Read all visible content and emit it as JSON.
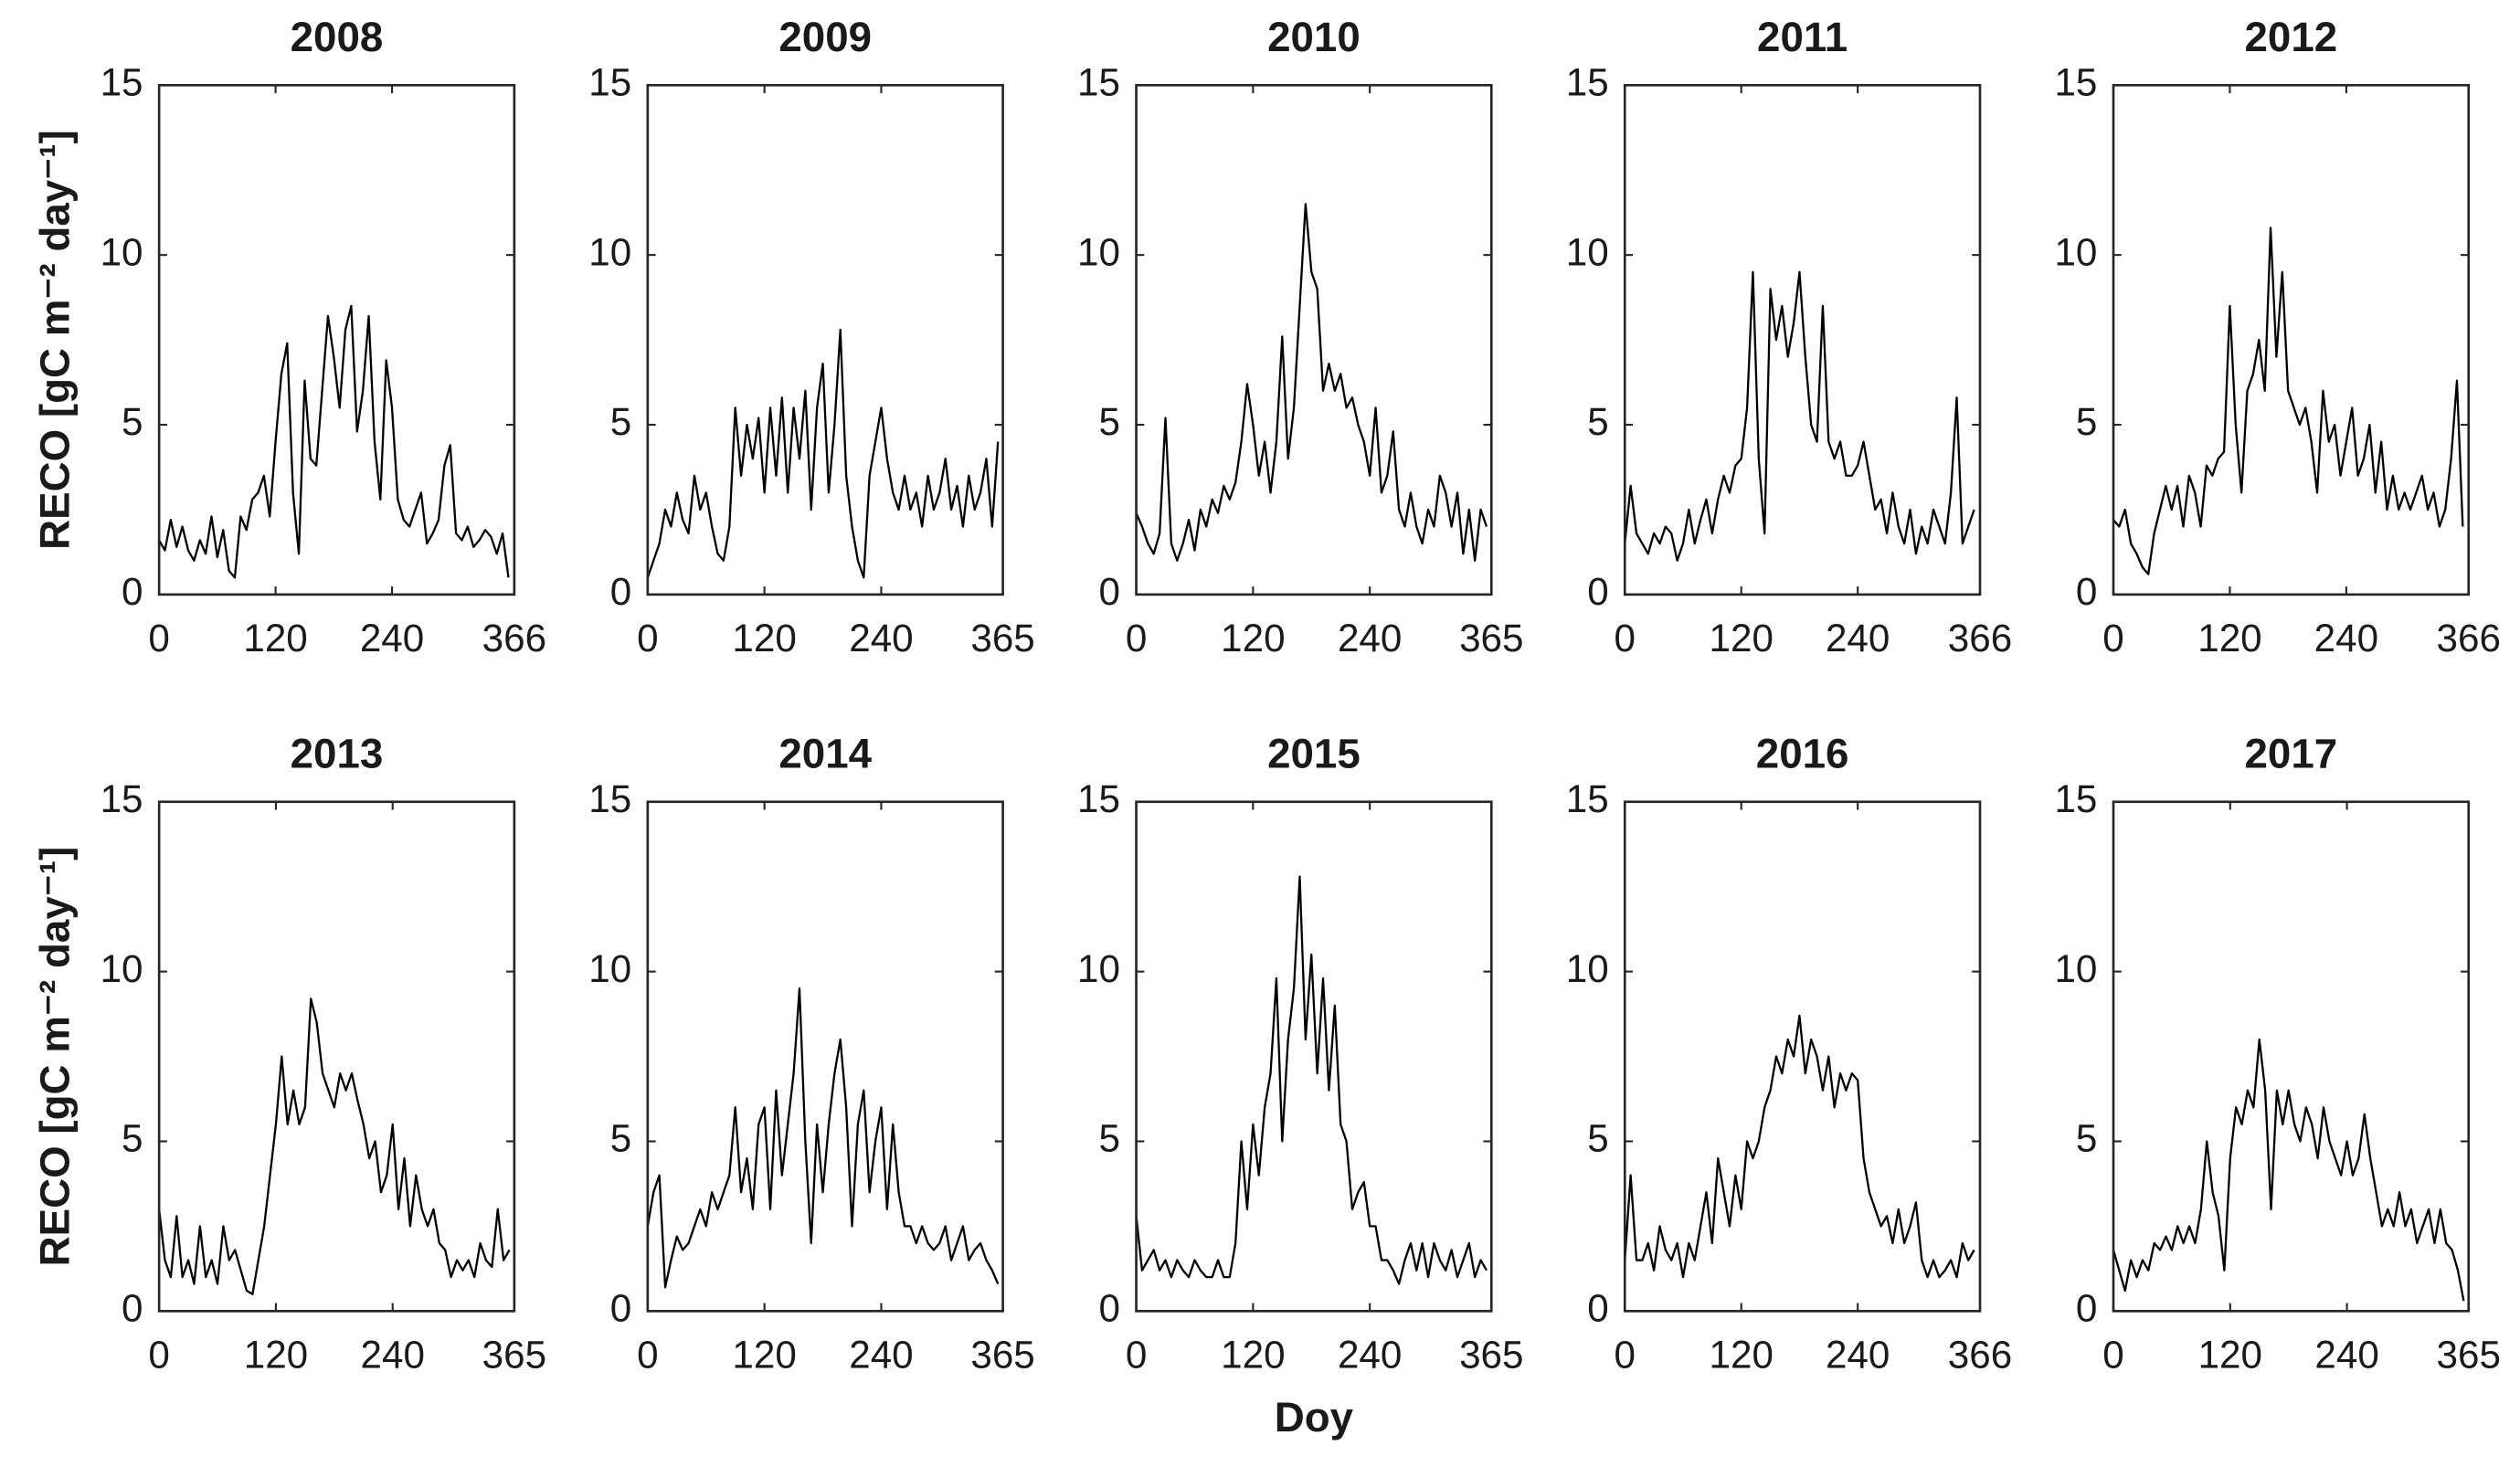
{
  "chart_data": [
    {
      "type": "line",
      "title": "2008",
      "ylabel": "RECO [gC m⁻² day⁻¹]",
      "color": "#000000",
      "xlim": [
        0,
        366
      ],
      "xticks": [
        0,
        120,
        240,
        366
      ],
      "ylim": [
        0,
        15
      ],
      "yticks": [
        0,
        5,
        10,
        15
      ],
      "x": [
        0,
        6,
        12,
        18,
        24,
        30,
        36,
        42,
        48,
        54,
        60,
        66,
        72,
        78,
        84,
        90,
        96,
        102,
        108,
        114,
        120,
        126,
        132,
        138,
        144,
        150,
        156,
        162,
        168,
        174,
        180,
        186,
        192,
        198,
        204,
        210,
        216,
        222,
        228,
        234,
        240,
        246,
        252,
        258,
        264,
        270,
        276,
        282,
        288,
        294,
        300,
        306,
        312,
        318,
        324,
        330,
        336,
        342,
        348,
        354,
        360
      ],
      "values": [
        1.6,
        1.3,
        2.2,
        1.4,
        2.0,
        1.3,
        1.0,
        1.6,
        1.2,
        2.3,
        1.1,
        1.9,
        0.7,
        0.5,
        2.3,
        1.9,
        2.8,
        3.0,
        3.5,
        2.3,
        4.5,
        6.5,
        7.4,
        3.0,
        1.2,
        6.3,
        4.0,
        3.8,
        6.0,
        8.2,
        7.0,
        5.5,
        7.8,
        8.5,
        4.8,
        6.0,
        8.2,
        4.5,
        2.8,
        6.9,
        5.5,
        2.8,
        2.2,
        2.0,
        2.5,
        3.0,
        1.5,
        1.8,
        2.2,
        3.8,
        4.4,
        1.8,
        1.6,
        2.0,
        1.4,
        1.6,
        1.9,
        1.7,
        1.2,
        1.8,
        0.5
      ]
    },
    {
      "type": "line",
      "title": "2009",
      "color": "#000000",
      "xlim": [
        0,
        365
      ],
      "xticks": [
        0,
        120,
        240,
        365
      ],
      "ylim": [
        0,
        15
      ],
      "yticks": [
        0,
        5,
        10,
        15
      ],
      "x": [
        0,
        6,
        12,
        18,
        24,
        30,
        36,
        42,
        48,
        54,
        60,
        66,
        72,
        78,
        84,
        90,
        96,
        102,
        108,
        114,
        120,
        126,
        132,
        138,
        144,
        150,
        156,
        162,
        168,
        174,
        180,
        186,
        192,
        198,
        204,
        210,
        216,
        222,
        228,
        234,
        240,
        246,
        252,
        258,
        264,
        270,
        276,
        282,
        288,
        294,
        300,
        306,
        312,
        318,
        324,
        330,
        336,
        342,
        348,
        354,
        360
      ],
      "values": [
        0.5,
        1.0,
        1.5,
        2.5,
        2.0,
        3.0,
        2.2,
        1.8,
        3.5,
        2.5,
        3.0,
        2.0,
        1.2,
        1.0,
        2.0,
        5.5,
        3.5,
        5.0,
        4.0,
        5.2,
        3.0,
        5.5,
        3.5,
        5.8,
        3.0,
        5.5,
        4.0,
        6.0,
        2.5,
        5.5,
        6.8,
        3.0,
        5.0,
        7.8,
        3.5,
        2.0,
        1.0,
        0.5,
        3.5,
        4.5,
        5.5,
        4.0,
        3.0,
        2.5,
        3.5,
        2.5,
        3.0,
        2.0,
        3.5,
        2.5,
        3.0,
        4.0,
        2.5,
        3.2,
        2.0,
        3.5,
        2.5,
        3.0,
        4.0,
        2.0,
        4.5
      ]
    },
    {
      "type": "line",
      "title": "2010",
      "color": "#000000",
      "xlim": [
        0,
        365
      ],
      "xticks": [
        0,
        120,
        240,
        365
      ],
      "ylim": [
        0,
        15
      ],
      "yticks": [
        0,
        5,
        10,
        15
      ],
      "x": [
        0,
        6,
        12,
        18,
        24,
        30,
        36,
        42,
        48,
        54,
        60,
        66,
        72,
        78,
        84,
        90,
        96,
        102,
        108,
        114,
        120,
        126,
        132,
        138,
        144,
        150,
        156,
        162,
        168,
        174,
        180,
        186,
        192,
        198,
        204,
        210,
        216,
        222,
        228,
        234,
        240,
        246,
        252,
        258,
        264,
        270,
        276,
        282,
        288,
        294,
        300,
        306,
        312,
        318,
        324,
        330,
        336,
        342,
        348,
        354,
        360
      ],
      "values": [
        2.4,
        2.0,
        1.5,
        1.2,
        1.8,
        5.2,
        1.5,
        1.0,
        1.5,
        2.2,
        1.3,
        2.5,
        2.0,
        2.8,
        2.4,
        3.2,
        2.8,
        3.3,
        4.5,
        6.2,
        5.0,
        3.5,
        4.5,
        3.0,
        4.5,
        7.6,
        4.0,
        5.5,
        8.5,
        11.5,
        9.5,
        9.0,
        6.0,
        6.8,
        6.0,
        6.5,
        5.5,
        5.8,
        5.0,
        4.5,
        3.5,
        5.5,
        3.0,
        3.5,
        4.8,
        2.5,
        2.0,
        3.0,
        2.0,
        1.5,
        2.5,
        2.0,
        3.5,
        3.0,
        2.0,
        3.0,
        1.2,
        2.5,
        1.0,
        2.5,
        2.0
      ]
    },
    {
      "type": "line",
      "title": "2011",
      "color": "#000000",
      "xlim": [
        0,
        366
      ],
      "xticks": [
        0,
        120,
        240,
        366
      ],
      "ylim": [
        0,
        15
      ],
      "yticks": [
        0,
        5,
        10,
        15
      ],
      "x": [
        0,
        6,
        12,
        18,
        24,
        30,
        36,
        42,
        48,
        54,
        60,
        66,
        72,
        78,
        84,
        90,
        96,
        102,
        108,
        114,
        120,
        126,
        132,
        138,
        144,
        150,
        156,
        162,
        168,
        174,
        180,
        186,
        192,
        198,
        204,
        210,
        216,
        222,
        228,
        234,
        240,
        246,
        252,
        258,
        264,
        270,
        276,
        282,
        288,
        294,
        300,
        306,
        312,
        318,
        324,
        330,
        336,
        342,
        348,
        354,
        360
      ],
      "values": [
        1.5,
        3.2,
        1.8,
        1.5,
        1.2,
        1.8,
        1.5,
        2.0,
        1.8,
        1.0,
        1.5,
        2.5,
        1.5,
        2.2,
        2.8,
        1.8,
        2.8,
        3.5,
        3.0,
        3.8,
        4.0,
        5.5,
        9.5,
        4.0,
        1.8,
        9.0,
        7.5,
        8.5,
        7.0,
        8.0,
        9.5,
        7.0,
        5.0,
        4.5,
        8.5,
        4.5,
        4.0,
        4.5,
        3.5,
        3.5,
        3.8,
        4.5,
        3.5,
        2.5,
        2.8,
        1.8,
        3.0,
        2.0,
        1.5,
        2.5,
        1.2,
        2.0,
        1.5,
        2.5,
        2.0,
        1.5,
        3.0,
        5.8,
        1.5,
        2.0,
        2.5
      ]
    },
    {
      "type": "line",
      "title": "2012",
      "color": "#000000",
      "xlim": [
        0,
        366
      ],
      "xticks": [
        0,
        120,
        240,
        366
      ],
      "ylim": [
        0,
        15
      ],
      "yticks": [
        0,
        5,
        10,
        15
      ],
      "x": [
        0,
        6,
        12,
        18,
        24,
        30,
        36,
        42,
        48,
        54,
        60,
        66,
        72,
        78,
        84,
        90,
        96,
        102,
        108,
        114,
        120,
        126,
        132,
        138,
        144,
        150,
        156,
        162,
        168,
        174,
        180,
        186,
        192,
        198,
        204,
        210,
        216,
        222,
        228,
        234,
        240,
        246,
        252,
        258,
        264,
        270,
        276,
        282,
        288,
        294,
        300,
        306,
        312,
        318,
        324,
        330,
        336,
        342,
        348,
        354,
        360
      ],
      "values": [
        2.2,
        2.0,
        2.5,
        1.5,
        1.2,
        0.8,
        0.6,
        1.8,
        2.5,
        3.2,
        2.5,
        3.2,
        2.0,
        3.5,
        3.0,
        2.0,
        3.8,
        3.5,
        4.0,
        4.2,
        8.5,
        5.0,
        3.0,
        6.0,
        6.5,
        7.5,
        6.0,
        10.8,
        7.0,
        9.5,
        6.0,
        5.5,
        5.0,
        5.5,
        4.5,
        3.0,
        6.0,
        4.5,
        5.0,
        3.5,
        4.5,
        5.5,
        3.5,
        4.0,
        5.0,
        3.0,
        4.5,
        2.5,
        3.5,
        2.5,
        3.0,
        2.5,
        3.0,
        3.5,
        2.5,
        3.0,
        2.0,
        2.5,
        4.0,
        6.3,
        2.0
      ]
    },
    {
      "type": "line",
      "title": "2013",
      "ylabel": "RECO [gC m⁻² day⁻¹]",
      "color": "#000000",
      "xlim": [
        0,
        365
      ],
      "xticks": [
        0,
        120,
        240,
        365
      ],
      "ylim": [
        0,
        15
      ],
      "yticks": [
        0,
        5,
        10,
        15
      ],
      "x": [
        0,
        6,
        12,
        18,
        24,
        30,
        36,
        42,
        48,
        54,
        60,
        66,
        72,
        78,
        84,
        90,
        96,
        102,
        108,
        114,
        120,
        126,
        132,
        138,
        144,
        150,
        156,
        162,
        168,
        174,
        180,
        186,
        192,
        198,
        204,
        210,
        216,
        222,
        228,
        234,
        240,
        246,
        252,
        258,
        264,
        270,
        276,
        282,
        288,
        294,
        300,
        306,
        312,
        318,
        324,
        330,
        336,
        342,
        348,
        354,
        360
      ],
      "values": [
        3.0,
        1.5,
        1.0,
        2.8,
        1.0,
        1.5,
        0.8,
        2.5,
        1.0,
        1.5,
        0.8,
        2.5,
        1.5,
        1.8,
        1.2,
        0.6,
        0.5,
        1.5,
        2.5,
        4.0,
        5.5,
        7.5,
        5.5,
        6.5,
        5.5,
        6.0,
        9.2,
        8.5,
        7.0,
        6.5,
        6.0,
        7.0,
        6.5,
        7.0,
        6.2,
        5.5,
        4.5,
        5.0,
        3.5,
        4.0,
        5.5,
        3.0,
        4.5,
        2.5,
        4.0,
        3.0,
        2.5,
        3.0,
        2.0,
        1.8,
        1.0,
        1.5,
        1.2,
        1.5,
        1.0,
        2.0,
        1.5,
        1.3,
        3.0,
        1.5,
        1.8
      ]
    },
    {
      "type": "line",
      "title": "2014",
      "color": "#000000",
      "xlim": [
        0,
        365
      ],
      "xticks": [
        0,
        120,
        240,
        365
      ],
      "ylim": [
        0,
        15
      ],
      "yticks": [
        0,
        5,
        10,
        15
      ],
      "x": [
        0,
        6,
        12,
        18,
        24,
        30,
        36,
        42,
        48,
        54,
        60,
        66,
        72,
        78,
        84,
        90,
        96,
        102,
        108,
        114,
        120,
        126,
        132,
        138,
        144,
        150,
        156,
        162,
        168,
        174,
        180,
        186,
        192,
        198,
        204,
        210,
        216,
        222,
        228,
        234,
        240,
        246,
        252,
        258,
        264,
        270,
        276,
        282,
        288,
        294,
        300,
        306,
        312,
        318,
        324,
        330,
        336,
        342,
        348,
        354,
        360
      ],
      "values": [
        2.5,
        3.5,
        4.0,
        0.7,
        1.5,
        2.2,
        1.8,
        2.0,
        2.5,
        3.0,
        2.5,
        3.5,
        3.0,
        3.5,
        4.0,
        6.0,
        3.5,
        4.5,
        3.0,
        5.5,
        6.0,
        3.0,
        6.5,
        4.0,
        5.5,
        7.0,
        9.5,
        5.0,
        2.0,
        5.5,
        3.5,
        5.5,
        7.0,
        8.0,
        6.0,
        2.5,
        5.5,
        6.5,
        3.5,
        5.0,
        6.0,
        3.0,
        5.5,
        3.5,
        2.5,
        2.5,
        2.0,
        2.5,
        2.0,
        1.8,
        2.0,
        2.5,
        1.5,
        2.0,
        2.5,
        1.5,
        1.8,
        2.0,
        1.5,
        1.2,
        0.8
      ]
    },
    {
      "type": "line",
      "title": "2015",
      "xlabel": "Doy",
      "color": "#000000",
      "xlim": [
        0,
        365
      ],
      "xticks": [
        0,
        120,
        240,
        365
      ],
      "ylim": [
        0,
        15
      ],
      "yticks": [
        0,
        5,
        10,
        15
      ],
      "x": [
        0,
        6,
        12,
        18,
        24,
        30,
        36,
        42,
        48,
        54,
        60,
        66,
        72,
        78,
        84,
        90,
        96,
        102,
        108,
        114,
        120,
        126,
        132,
        138,
        144,
        150,
        156,
        162,
        168,
        174,
        180,
        186,
        192,
        198,
        204,
        210,
        216,
        222,
        228,
        234,
        240,
        246,
        252,
        258,
        264,
        270,
        276,
        282,
        288,
        294,
        300,
        306,
        312,
        318,
        324,
        330,
        336,
        342,
        348,
        354,
        360
      ],
      "values": [
        2.8,
        1.2,
        1.5,
        1.8,
        1.2,
        1.5,
        1.0,
        1.5,
        1.2,
        1.0,
        1.5,
        1.2,
        1.0,
        1.0,
        1.5,
        1.0,
        1.0,
        2.0,
        5.0,
        3.0,
        5.5,
        4.0,
        6.0,
        7.0,
        9.8,
        5.0,
        8.0,
        9.5,
        12.8,
        8.0,
        10.5,
        7.0,
        9.8,
        6.5,
        9.0,
        5.5,
        5.0,
        3.0,
        3.5,
        3.8,
        2.5,
        2.5,
        1.5,
        1.5,
        1.2,
        0.8,
        1.5,
        2.0,
        1.2,
        2.0,
        1.0,
        2.0,
        1.5,
        1.2,
        1.8,
        1.0,
        1.5,
        2.0,
        1.0,
        1.5,
        1.2
      ]
    },
    {
      "type": "line",
      "title": "2016",
      "color": "#000000",
      "xlim": [
        0,
        366
      ],
      "xticks": [
        0,
        120,
        240,
        366
      ],
      "ylim": [
        0,
        15
      ],
      "yticks": [
        0,
        5,
        10,
        15
      ],
      "x": [
        0,
        6,
        12,
        18,
        24,
        30,
        36,
        42,
        48,
        54,
        60,
        66,
        72,
        78,
        84,
        90,
        96,
        102,
        108,
        114,
        120,
        126,
        132,
        138,
        144,
        150,
        156,
        162,
        168,
        174,
        180,
        186,
        192,
        198,
        204,
        210,
        216,
        222,
        228,
        234,
        240,
        246,
        252,
        258,
        264,
        270,
        276,
        282,
        288,
        294,
        300,
        306,
        312,
        318,
        324,
        330,
        336,
        342,
        348,
        354,
        360
      ],
      "values": [
        1.5,
        4.0,
        1.5,
        1.5,
        2.0,
        1.2,
        2.5,
        1.8,
        1.5,
        2.0,
        1.0,
        2.0,
        1.5,
        2.5,
        3.5,
        2.0,
        4.5,
        3.5,
        2.5,
        4.0,
        3.0,
        5.0,
        4.5,
        5.0,
        6.0,
        6.5,
        7.5,
        7.0,
        8.0,
        7.5,
        8.7,
        7.0,
        8.0,
        7.5,
        6.5,
        7.5,
        6.0,
        7.0,
        6.5,
        7.0,
        6.8,
        4.5,
        3.5,
        3.0,
        2.5,
        2.8,
        2.0,
        3.0,
        2.0,
        2.5,
        3.2,
        1.5,
        1.0,
        1.5,
        1.0,
        1.2,
        1.5,
        1.0,
        2.0,
        1.5,
        1.8
      ]
    },
    {
      "type": "line",
      "title": "2017",
      "color": "#000000",
      "xlim": [
        0,
        365
      ],
      "xticks": [
        0,
        120,
        240,
        365
      ],
      "ylim": [
        0,
        15
      ],
      "yticks": [
        0,
        5,
        10,
        15
      ],
      "x": [
        0,
        6,
        12,
        18,
        24,
        30,
        36,
        42,
        48,
        54,
        60,
        66,
        72,
        78,
        84,
        90,
        96,
        102,
        108,
        114,
        120,
        126,
        132,
        138,
        144,
        150,
        156,
        162,
        168,
        174,
        180,
        186,
        192,
        198,
        204,
        210,
        216,
        222,
        228,
        234,
        240,
        246,
        252,
        258,
        264,
        270,
        276,
        282,
        288,
        294,
        300,
        306,
        312,
        318,
        324,
        330,
        336,
        342,
        348,
        354,
        360
      ],
      "values": [
        1.8,
        1.2,
        0.6,
        1.5,
        1.0,
        1.5,
        1.2,
        2.0,
        1.8,
        2.2,
        1.8,
        2.5,
        2.0,
        2.5,
        2.0,
        3.0,
        5.0,
        3.5,
        2.8,
        1.2,
        4.5,
        6.0,
        5.5,
        6.5,
        6.0,
        8.0,
        6.5,
        3.0,
        6.5,
        5.5,
        6.5,
        5.5,
        5.0,
        6.0,
        5.5,
        4.5,
        6.0,
        5.0,
        4.5,
        4.0,
        5.0,
        4.0,
        4.5,
        5.8,
        4.5,
        3.5,
        2.5,
        3.0,
        2.5,
        3.5,
        2.5,
        3.0,
        2.0,
        2.5,
        3.0,
        2.0,
        3.0,
        2.0,
        1.8,
        1.2,
        0.3
      ]
    }
  ]
}
